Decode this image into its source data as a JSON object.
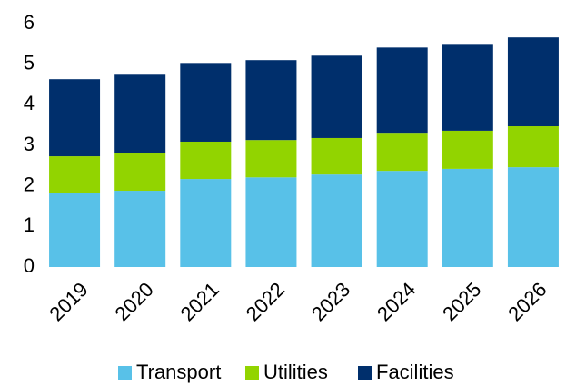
{
  "chart_data": {
    "type": "stacked_bar",
    "categories": [
      "2019",
      "2020",
      "2021",
      "2022",
      "2023",
      "2024",
      "2025",
      "2026"
    ],
    "series": [
      {
        "name": "Transport",
        "color": "#58c1e8",
        "values": [
          1.83,
          1.88,
          2.17,
          2.21,
          2.28,
          2.37,
          2.42,
          2.46
        ]
      },
      {
        "name": "Utilities",
        "color": "#92d400",
        "values": [
          0.9,
          0.92,
          0.92,
          0.92,
          0.9,
          0.94,
          0.94,
          1.01
        ]
      },
      {
        "name": "Facilities",
        "color": "#002f6c",
        "values": [
          1.9,
          1.94,
          1.94,
          1.97,
          2.03,
          2.1,
          2.14,
          2.19
        ]
      }
    ],
    "ylim": [
      0,
      6
    ],
    "yticks": [
      0,
      1,
      2,
      3,
      4,
      5,
      6
    ],
    "grid": false,
    "legend": "bottom"
  }
}
